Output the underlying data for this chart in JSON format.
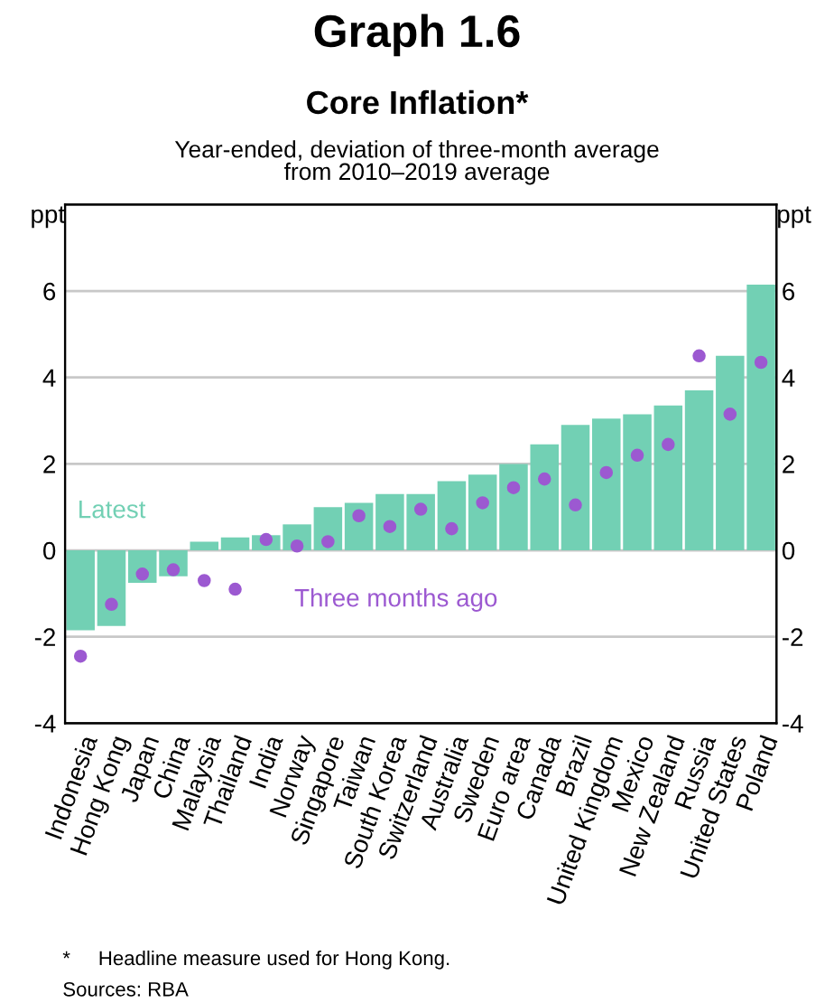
{
  "chart_data": {
    "type": "bar",
    "title": "Graph 1.6",
    "subtitle": "Core Inflation*",
    "ylabel": "ppt",
    "y2label": "ppt",
    "categories": [
      "Indonesia",
      "Hong Kong",
      "Japan",
      "China",
      "Malaysia",
      "Thailand",
      "India",
      "Norway",
      "Singapore",
      "Taiwan",
      "South Korea",
      "Switzerland",
      "Australia",
      "Sweden",
      "Euro area",
      "Canada",
      "Brazil",
      "United Kingdom",
      "Mexico",
      "New Zealand",
      "Russia",
      "United States",
      "Poland"
    ],
    "series": [
      {
        "name": "Latest",
        "color": "#72d0b4",
        "values": [
          -1.85,
          -1.75,
          -0.75,
          -0.6,
          0.2,
          0.3,
          0.35,
          0.6,
          1.0,
          1.1,
          1.3,
          1.3,
          1.6,
          1.75,
          2.0,
          2.45,
          2.9,
          3.05,
          3.15,
          3.35,
          3.7,
          4.5,
          6.15
        ]
      },
      {
        "name": "Three months ago",
        "type": "scatter",
        "color": "#9c59d1",
        "marker": "circle",
        "values": [
          -2.45,
          -1.25,
          -0.55,
          -0.45,
          -0.7,
          -0.9,
          0.25,
          0.1,
          0.2,
          0.8,
          0.55,
          0.95,
          0.5,
          1.1,
          1.45,
          1.65,
          1.05,
          1.8,
          2.2,
          2.45,
          4.5,
          3.15,
          4.35
        ]
      }
    ],
    "ylim": [
      -4,
      8
    ],
    "yticks": [
      -4,
      -2,
      0,
      2,
      4,
      6
    ],
    "y2lim": [
      -4,
      8
    ],
    "y2ticks": [
      -4,
      -2,
      0,
      2,
      4,
      6
    ],
    "grid": "y",
    "annotations": [
      "Year-ended, deviation of three-month average\nfrom 2010–2019 average",
      "*     Headline measure used for Hong Kong.",
      "Sources: RBA"
    ]
  }
}
